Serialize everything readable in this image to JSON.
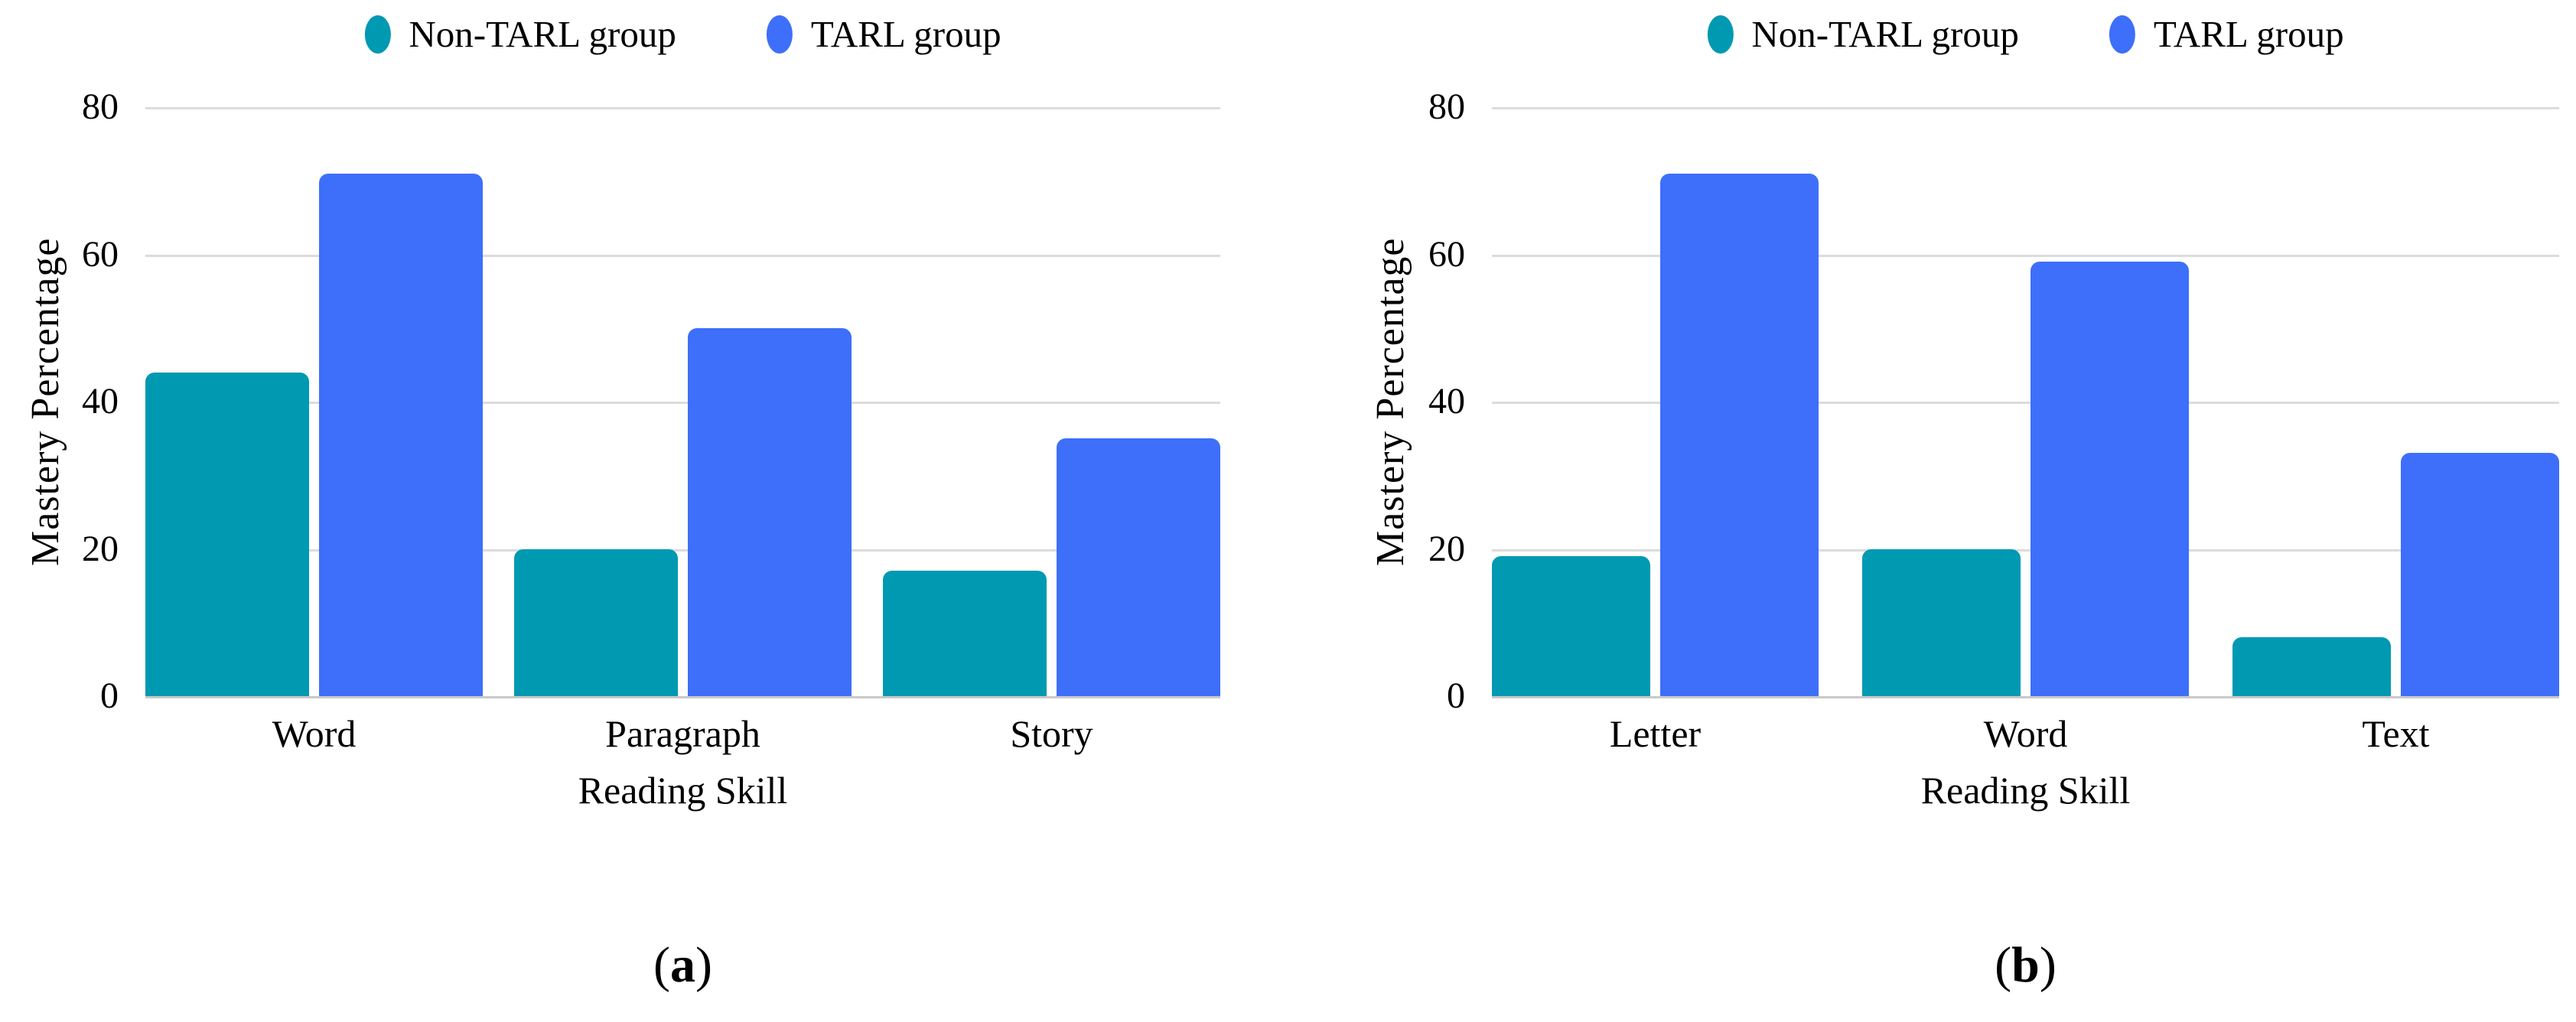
{
  "figure": {
    "background": "#ffffff",
    "text_color": "#000000",
    "gridline_color": "#dcdcdc",
    "baseline_color": "#c9c9c9"
  },
  "chart_data": [
    {
      "type": "bar",
      "panel_caption": {
        "open": "(",
        "letter": "a",
        "close": ")"
      },
      "title": "",
      "categories": [
        "Word",
        "Paragraph",
        "Story"
      ],
      "series": [
        {
          "name": "Non-TARL group",
          "color": "#0099B2",
          "values": [
            44,
            20,
            17
          ]
        },
        {
          "name": "TARL group",
          "color": "#3E6FFA",
          "values": [
            71,
            50,
            35
          ]
        }
      ],
      "xlabel": "Reading Skill",
      "ylabel": "Mastery Percentage",
      "ylim": [
        0,
        80
      ],
      "yticks": [
        0,
        20,
        40,
        60,
        80
      ],
      "grid": "horizontal",
      "legend_position": "top"
    },
    {
      "type": "bar",
      "panel_caption": {
        "open": "(",
        "letter": "b",
        "close": ")"
      },
      "title": "",
      "categories": [
        "Letter",
        "Word",
        "Text"
      ],
      "series": [
        {
          "name": "Non-TARL group",
          "color": "#0099B2",
          "values": [
            19,
            20,
            8
          ]
        },
        {
          "name": "TARL group",
          "color": "#3E6FFA",
          "values": [
            71,
            59,
            33
          ]
        }
      ],
      "xlabel": "Reading Skill",
      "ylabel": "Mastery Percentage",
      "ylim": [
        0,
        80
      ],
      "yticks": [
        0,
        20,
        40,
        60,
        80
      ],
      "grid": "horizontal",
      "legend_position": "top"
    }
  ]
}
